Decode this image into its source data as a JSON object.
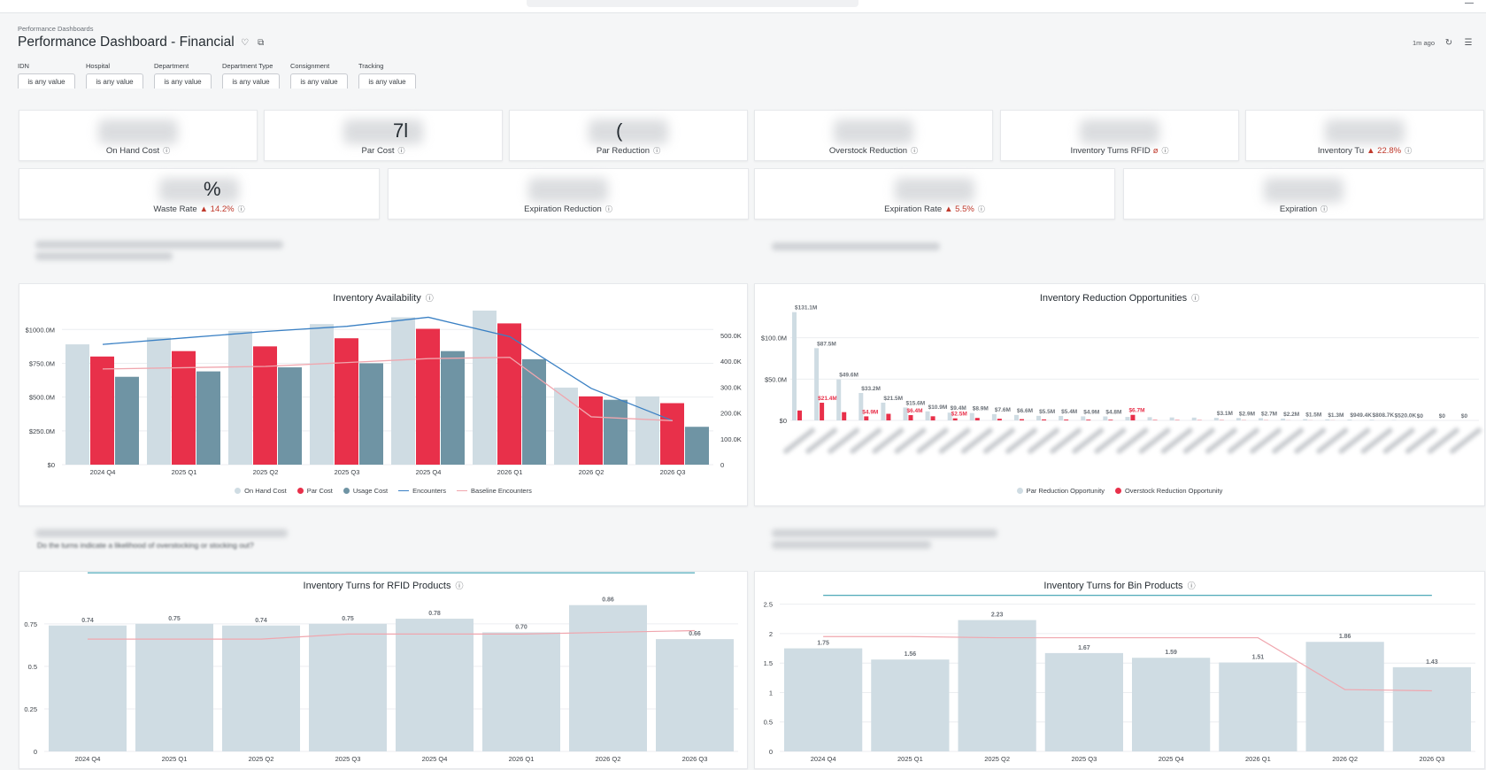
{
  "header": {
    "breadcrumb": "Performance Dashboards",
    "title": "Performance Dashboard - Financial",
    "updated": "1m ago"
  },
  "icons": {
    "favorite": "heart-icon",
    "copy": "copy-icon",
    "refresh": "refresh-icon",
    "filter": "filter-icon",
    "info": "info-icon"
  },
  "filters": [
    {
      "label": "IDN",
      "value": "is any value"
    },
    {
      "label": "Hospital",
      "value": "is any value"
    },
    {
      "label": "Department",
      "value": "is any value"
    },
    {
      "label": "Department Type",
      "value": "is any value"
    },
    {
      "label": "Consignment",
      "value": "is any value"
    },
    {
      "label": "Tracking",
      "value": "is any value"
    }
  ],
  "kpi_row1": [
    {
      "label": "On Hand Cost",
      "partial": "",
      "delta": ""
    },
    {
      "label": "Par Cost",
      "partial": "7l",
      "delta": ""
    },
    {
      "label": "Par Reduction",
      "partial": "(",
      "delta": ""
    },
    {
      "label": "Overstock Reduction",
      "partial": "",
      "delta": ""
    },
    {
      "label": "Inventory Turns RFID",
      "partial": "",
      "delta": "ø"
    },
    {
      "label": "Inventory Tu",
      "partial": "",
      "delta": "▲ 22.8%"
    }
  ],
  "kpi_row2": [
    {
      "label": "Waste Rate",
      "partial": "%",
      "delta": "▲ 14.2%"
    },
    {
      "label": "Expiration Reduction",
      "partial": "",
      "delta": ""
    },
    {
      "label": "Expiration Rate",
      "partial": "",
      "delta": "▲ 5.5%"
    },
    {
      "label": "Expiration",
      "partial": "",
      "delta": ""
    }
  ],
  "section_questions": {
    "q3_line2": "Do the turns indicate a likelihood of overstocking or stocking out?"
  },
  "colors": {
    "on_hand": "#cfdce3",
    "par": "#e8304a",
    "usage": "#6f94a4",
    "encounters": "#3a80c4",
    "baseline": "#f0a6ae",
    "turns_bar": "#cfdce3",
    "turns_line": "#f0a6ae",
    "turns_target": "#3a9fb0",
    "delta_up": "#c0392b"
  },
  "panels": {
    "availability": {
      "title": "Inventory Availability"
    },
    "reduction": {
      "title": "Inventory Reduction Opportunities"
    },
    "turns_rfid": {
      "title": "Inventory Turns for RFID Products"
    },
    "turns_bin": {
      "title": "Inventory Turns for Bin Products"
    }
  },
  "chart_data": [
    {
      "type": "bar",
      "title": "Inventory Availability",
      "categories": [
        "2024 Q4",
        "2025 Q1",
        "2025 Q2",
        "2025 Q3",
        "2025 Q4",
        "2026 Q1",
        "2026 Q2",
        "2026 Q3"
      ],
      "y_ticks": [
        "$0",
        "$250.0M",
        "$500.0M",
        "$750.0M",
        "$1000.0M"
      ],
      "ylim": [
        0,
        1100
      ],
      "y2_ticks": [
        "0",
        "100.0K",
        "200.0K",
        "300.0K",
        "400.0K",
        "500.0K"
      ],
      "y2lim": [
        0,
        575
      ],
      "series": [
        {
          "name": "On Hand Cost",
          "kind": "bar",
          "values": [
            890,
            940,
            990,
            1040,
            1090,
            1140,
            570,
            505
          ]
        },
        {
          "name": "Par Cost",
          "kind": "bar",
          "values": [
            800,
            840,
            875,
            935,
            1005,
            1045,
            505,
            455
          ]
        },
        {
          "name": "Usage Cost",
          "kind": "bar",
          "values": [
            650,
            690,
            720,
            750,
            840,
            780,
            480,
            280
          ]
        },
        {
          "name": "Encounters",
          "kind": "line",
          "axis": "right",
          "values": [
            465,
            490,
            515,
            535,
            570,
            495,
            295,
            170
          ]
        },
        {
          "name": "Baseline Encounters",
          "kind": "line",
          "axis": "right",
          "values": [
            370,
            375,
            380,
            395,
            410,
            415,
            185,
            170
          ]
        }
      ]
    },
    {
      "type": "bar",
      "title": "Inventory Reduction Opportunities",
      "y_ticks": [
        "$0",
        "$50.0M",
        "$100.0M"
      ],
      "ylim": [
        0,
        135
      ],
      "series": [
        {
          "name": "Par Reduction Opportunity",
          "values": [
            131.1,
            87.5,
            49.6,
            33.2,
            21.5,
            15.6,
            10.9,
            9.4,
            8.9,
            7.6,
            6.6,
            5.5,
            5.4,
            4.9,
            4.8,
            4.2,
            3.9,
            3.6,
            3.4,
            3.1,
            2.9,
            2.7,
            2.2,
            1.5,
            1.3,
            0.95,
            0.81,
            0.52,
            0,
            0,
            0
          ]
        },
        {
          "name": "Overstock Reduction Opportunity",
          "values": [
            12,
            21.4,
            10,
            4.9,
            8,
            6.4,
            5,
            2.5,
            3,
            2,
            1.5,
            1.2,
            1,
            0.9,
            0.8,
            6.7,
            0.5,
            0.4,
            0.3,
            0.3,
            0.2,
            0.2,
            0.1,
            0.1,
            0.1,
            0,
            0,
            0,
            0,
            0,
            0
          ]
        }
      ],
      "data_labels": {
        "par": [
          "$131.1M",
          "$87.5M",
          "$49.6M",
          "$33.2M",
          "$21.5M",
          "$15.6M",
          "$10.9M",
          "$9.4M",
          "$8.9M",
          "$7.6M",
          "$6.6M",
          "$5.5M",
          "$5.4M",
          "$4.9M",
          "$4.8M",
          "",
          "",
          "",
          "",
          "$3.1M",
          "$2.9M",
          "$2.7M",
          "$2.2M",
          "$1.5M",
          "$1.3M",
          "$949.4K",
          "$808.7K",
          "$520.0K",
          "$0",
          "$0",
          "$0"
        ],
        "overstock": [
          "",
          "$21.4M",
          "",
          "$4.9M",
          "",
          "$6.4M",
          "",
          "$2.5M",
          "",
          "",
          "",
          "",
          "",
          "",
          "",
          "$6.7M",
          "",
          "",
          "",
          "",
          "",
          "",
          "",
          "",
          "",
          "",
          "",
          "",
          "",
          "",
          ""
        ]
      }
    },
    {
      "type": "bar",
      "title": "Inventory Turns for RFID Products",
      "categories": [
        "2024 Q4",
        "2025 Q1",
        "2025 Q2",
        "2025 Q3",
        "2025 Q4",
        "2026 Q1",
        "2026 Q2",
        "2026 Q3"
      ],
      "y_ticks": [
        "0",
        "0.25",
        "0.5",
        "0.75"
      ],
      "ylim": [
        0,
        0.9
      ],
      "values": [
        0.74,
        0.75,
        0.74,
        0.75,
        0.78,
        0.7,
        0.86,
        0.66
      ],
      "labels": [
        "0.74",
        "0.75",
        "0.74",
        "0.75",
        "0.78",
        "0.70",
        "0.86",
        "0.66"
      ],
      "line_values": [
        0.66,
        0.66,
        0.66,
        0.69,
        0.69,
        0.69,
        0.7,
        0.71
      ],
      "target": 1.05
    },
    {
      "type": "bar",
      "title": "Inventory Turns for Bin Products",
      "categories": [
        "2024 Q4",
        "2025 Q1",
        "2025 Q2",
        "2025 Q3",
        "2025 Q4",
        "2026 Q1",
        "2026 Q2",
        "2026 Q3"
      ],
      "y_ticks": [
        "0",
        "0.5",
        "1",
        "1.5",
        "2",
        "2.5"
      ],
      "ylim": [
        0,
        2.6
      ],
      "values": [
        1.75,
        1.56,
        2.23,
        1.67,
        1.59,
        1.51,
        1.86,
        1.43
      ],
      "labels": [
        "1.75",
        "1.56",
        "2.23",
        "1.67",
        "1.59",
        "1.51",
        "1.86",
        "1.43"
      ],
      "line_values": [
        1.95,
        1.95,
        1.93,
        1.93,
        1.93,
        1.93,
        1.05,
        1.03
      ],
      "target": 2.65
    }
  ]
}
